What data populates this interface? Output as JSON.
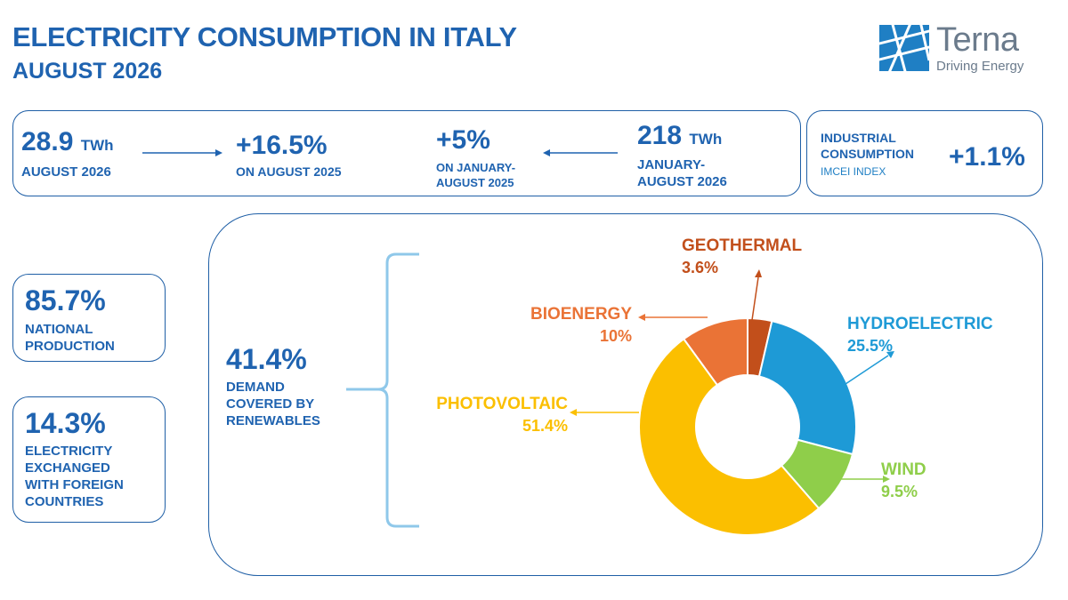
{
  "header": {
    "title": "ELECTRICITY CONSUMPTION IN ITALY",
    "subtitle": "AUGUST 2026"
  },
  "logo": {
    "name": "Terna",
    "tagline": "Driving Energy"
  },
  "top_bar": {
    "month_value": "28.9",
    "month_unit": "TWh",
    "month_label": "AUGUST 2026",
    "yoy_value": "+16.5%",
    "yoy_label": "ON AUGUST 2025",
    "ytd_change_value": "+5%",
    "ytd_change_label_1": "ON JANUARY-",
    "ytd_change_label_2": "AUGUST 2025",
    "ytd_value": "218",
    "ytd_unit": "TWh",
    "ytd_label_1": "JANUARY-",
    "ytd_label_2": "AUGUST 2026"
  },
  "industrial": {
    "label_1": "INDUSTRIAL",
    "label_2": "CONSUMPTION",
    "index_label": "IMCEI INDEX",
    "value": "+1.1%"
  },
  "national": {
    "value": "85.7%",
    "label_1": "NATIONAL",
    "label_2": "PRODUCTION"
  },
  "exchange": {
    "value": "14.3%",
    "label_1": "ELECTRICITY",
    "label_2": "EXCHANGED",
    "label_3": "WITH FOREIGN",
    "label_4": "COUNTRIES"
  },
  "renewables": {
    "value": "41.4%",
    "label_1": "DEMAND",
    "label_2": "COVERED BY",
    "label_3": "RENEWABLES"
  },
  "chart_data": {
    "type": "pie",
    "donut": true,
    "unit": "%",
    "slices": [
      {
        "name": "GEOTHERMAL",
        "value": 3.6,
        "label": "3.6%",
        "color": "#c24f1b"
      },
      {
        "name": "HYDROELECTRIC",
        "value": 25.5,
        "label": "25.5%",
        "color": "#1e9ad6"
      },
      {
        "name": "WIND",
        "value": 9.5,
        "label": "9.5%",
        "color": "#8fce4a"
      },
      {
        "name": "PHOTOVOLTAIC",
        "value": 51.4,
        "label": "51.4%",
        "color": "#fbbf00"
      },
      {
        "name": "BIOENERGY",
        "value": 10,
        "label": "10%",
        "color": "#ea7336"
      }
    ]
  },
  "colors": {
    "primary": "#1f63b0"
  }
}
